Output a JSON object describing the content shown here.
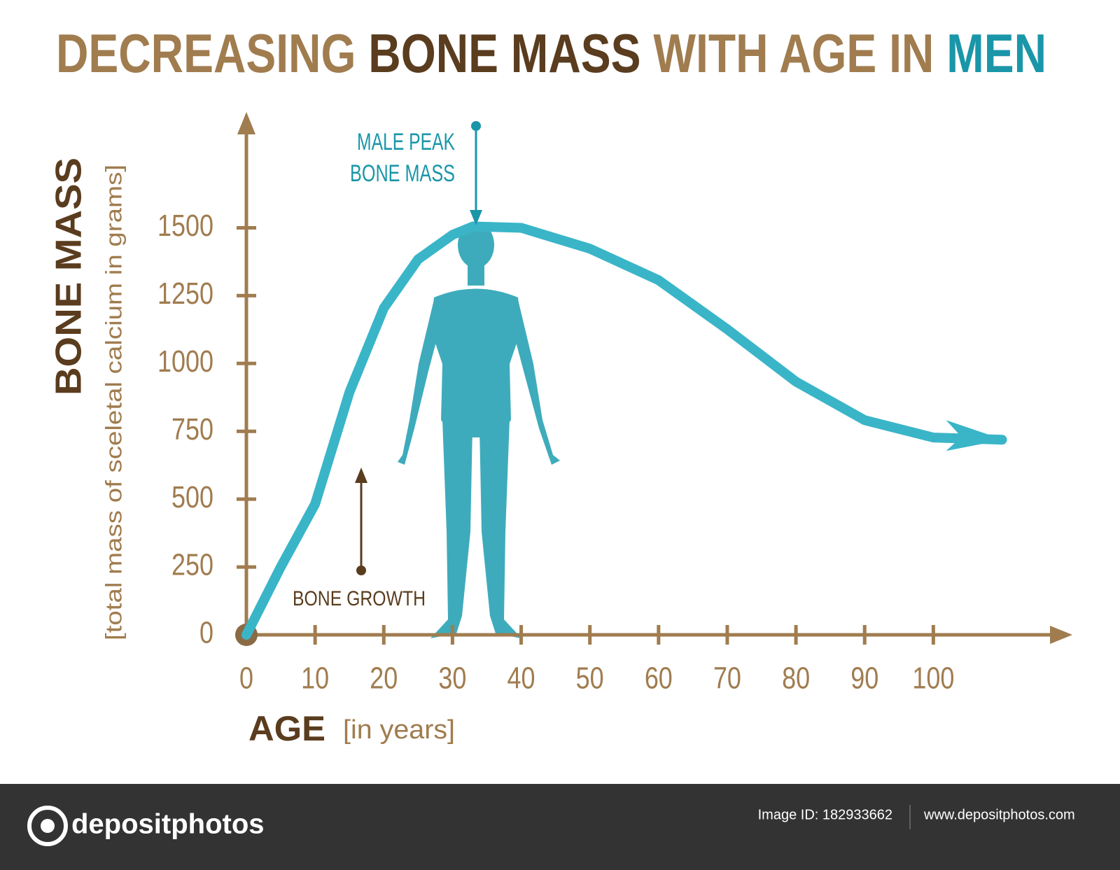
{
  "chart_data": {
    "type": "line",
    "title_parts": [
      {
        "text": "DECREASING",
        "color": "#a07c4f"
      },
      {
        "text": "BONE MASS",
        "color": "#5a3c1e"
      },
      {
        "text": "WITH AGE IN",
        "color": "#a07c4f"
      },
      {
        "text": "MEN",
        "color": "#1a96a8"
      }
    ],
    "y_label": "BONE MASS",
    "y_sublabel": "[total mass of sceletal calcium in grams]",
    "x_label": "AGE",
    "x_sublabel": "[in years]",
    "x": [
      0,
      5,
      10,
      15,
      20,
      25,
      30,
      33,
      40,
      50,
      60,
      70,
      80,
      90,
      100,
      110
    ],
    "series": [
      {
        "color": "#3ab5c8",
        "values": [
          0,
          250,
          482,
          894,
          1204,
          1384,
          1474,
          1505,
          1500,
          1423,
          1307,
          1126,
          933,
          791,
          727,
          719
        ]
      }
    ],
    "xlim": [
      0,
      118
    ],
    "ylim": [
      0,
      1870
    ],
    "xticks": [
      0,
      10,
      20,
      30,
      40,
      50,
      60,
      70,
      80,
      90,
      100
    ],
    "yticks": [
      0,
      250,
      500,
      750,
      1000,
      1250,
      1500
    ],
    "annotations": [
      {
        "lines": [
          "MALE PEAK",
          "BONE MASS"
        ],
        "color": "#1a96a8"
      },
      {
        "lines": [
          "BONE GROWTH"
        ],
        "color": "#5a3c1e"
      }
    ]
  },
  "footer": {
    "brand": "depositphotos",
    "image_id": "Image ID: 182933662",
    "url": "www.depositphotos.com"
  }
}
